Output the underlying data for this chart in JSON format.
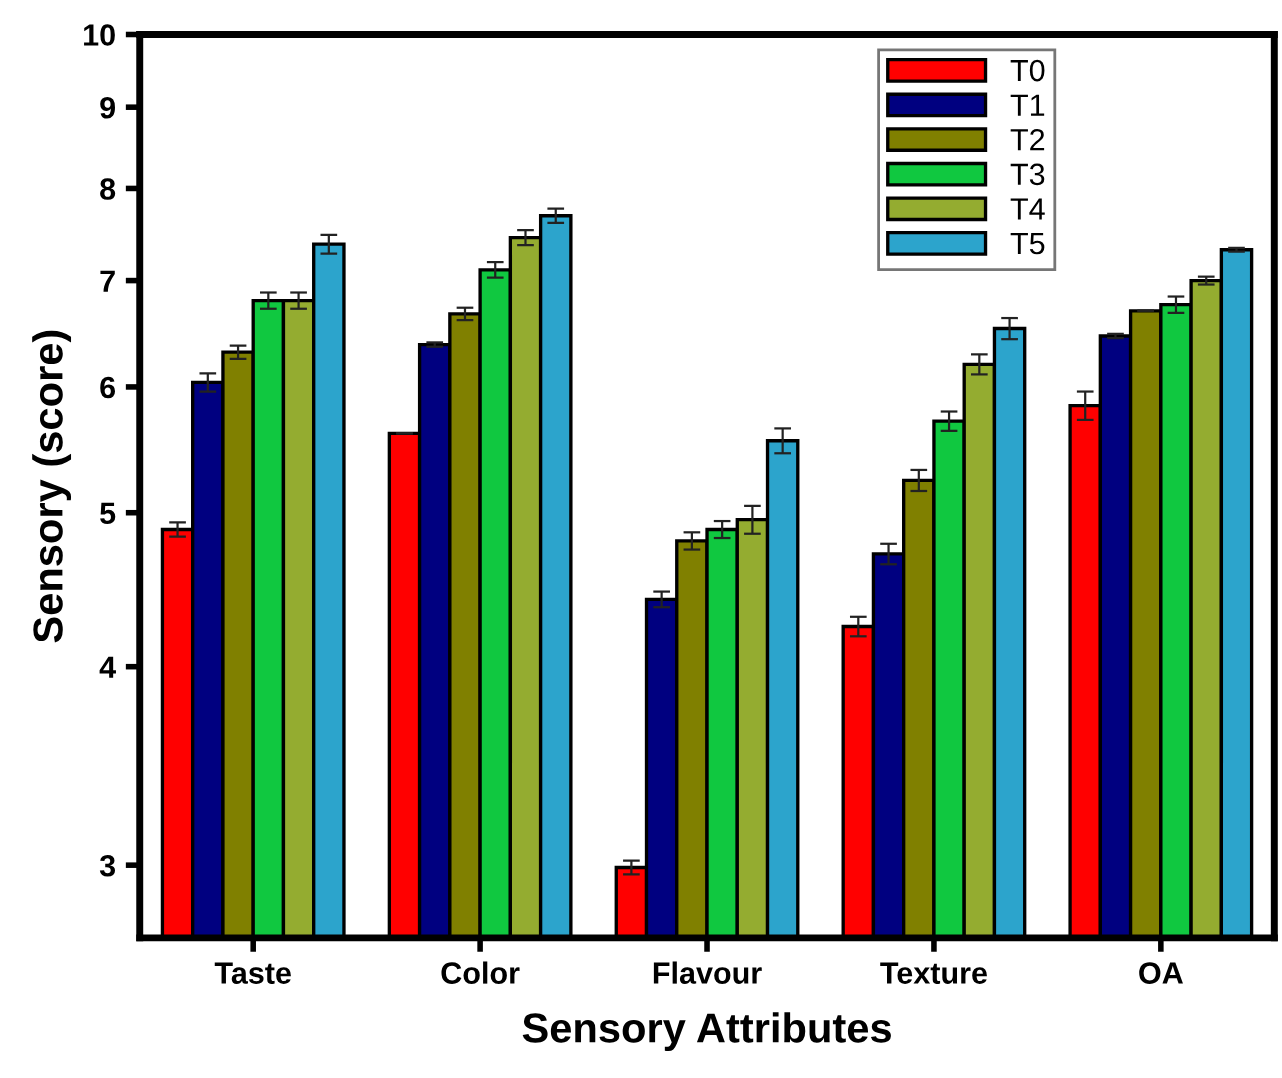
{
  "chart_data": {
    "type": "bar",
    "xlabel": "Sensory Attributes",
    "ylabel": "Sensory (score)",
    "categories": [
      "Taste",
      "Color",
      "Flavour",
      "Texture",
      "OA"
    ],
    "series": [
      {
        "name": "T0",
        "color": "#ff0000",
        "values": [
          4.88,
          5.61,
          2.99,
          4.24,
          5.84
        ],
        "errors": [
          0.05,
          null,
          0.03,
          0.06,
          0.12
        ]
      },
      {
        "name": "T1",
        "color": "#000080",
        "values": [
          6.04,
          6.38,
          4.41,
          4.71,
          6.46
        ],
        "errors": [
          0.08,
          0.02,
          0.05,
          0.07,
          0.02
        ]
      },
      {
        "name": "T2",
        "color": "#808000",
        "values": [
          6.31,
          6.67,
          4.8,
          5.24,
          6.7
        ],
        "errors": [
          0.06,
          0.06,
          0.06,
          0.08,
          null
        ]
      },
      {
        "name": "T3",
        "color": "#10c840",
        "values": [
          6.8,
          7.11,
          4.88,
          5.71,
          6.76
        ],
        "errors": [
          0.08,
          0.08,
          0.06,
          0.08,
          0.08
        ]
      },
      {
        "name": "T4",
        "color": "#94ac30",
        "values": [
          6.8,
          7.45,
          4.95,
          6.2,
          7.0
        ],
        "errors": [
          0.08,
          0.08,
          0.1,
          0.09,
          0.04
        ]
      },
      {
        "name": "T5",
        "color": "#2ca4cc",
        "values": [
          7.38,
          7.69,
          5.55,
          6.53,
          7.32
        ],
        "errors": [
          0.1,
          0.08,
          0.1,
          0.1,
          0.02
        ]
      }
    ],
    "log": "y",
    "ylim": [
      2.7,
      10
    ],
    "yticks": [
      3,
      4,
      5,
      6,
      7,
      8,
      9,
      10
    ],
    "grid": false,
    "legend": "top right"
  }
}
